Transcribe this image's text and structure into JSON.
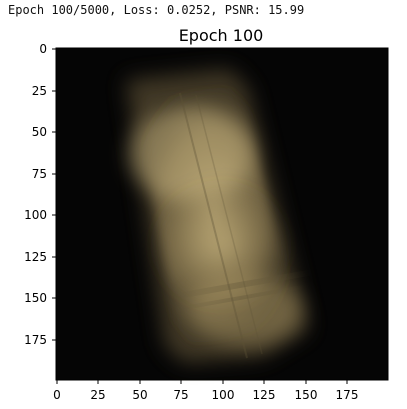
{
  "status": {
    "top_clipped": "0.0..., ... ...: 0.00",
    "line": "Epoch 100/5000, Loss: 0.0252, PSNR: 15.99"
  },
  "figure": {
    "title": "Epoch 100",
    "colors": {
      "background": "#050505",
      "blob_light": "#d8c38a",
      "blob_mid": "#b6a06b",
      "blob_dark": "#6f6040",
      "streak": "#5d5236"
    },
    "x_ticks": [
      "0",
      "25",
      "50",
      "75",
      "100",
      "125",
      "150",
      "175"
    ],
    "y_ticks": [
      "0",
      "25",
      "50",
      "75",
      "100",
      "125",
      "150",
      "175"
    ]
  }
}
